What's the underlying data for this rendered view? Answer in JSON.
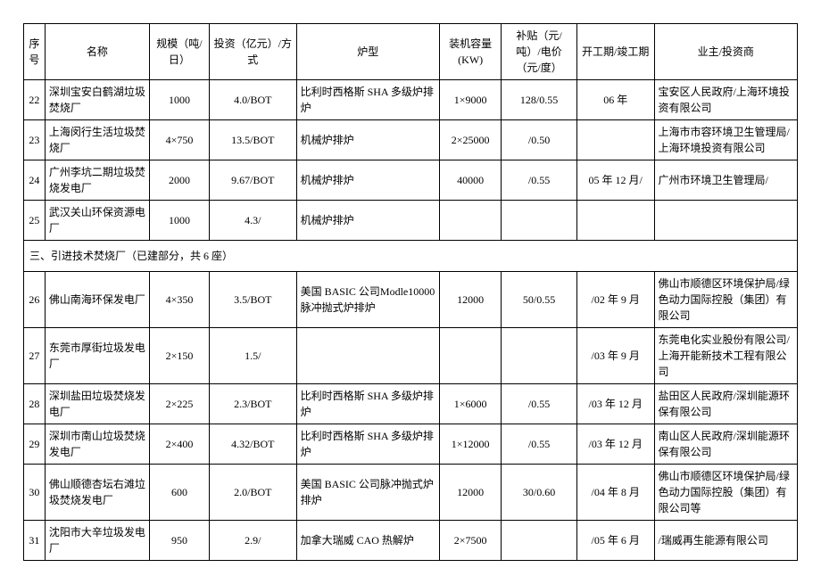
{
  "headers": {
    "idx": "序号",
    "name": "名称",
    "scale": "规模（吨/日）",
    "investment": "投资（亿元）/方式",
    "furnace": "炉型",
    "capacity": "装机容量(KW)",
    "subsidy": "补贴（元/吨）/电价（元/度）",
    "period": "开工期/竣工期",
    "owner": "业主/投资商"
  },
  "section1_rows": [
    {
      "idx": "22",
      "name": "深圳宝安白鹤湖垃圾焚烧厂",
      "scale": "1000",
      "inv": "4.0/BOT",
      "type": "比利时西格斯 SHA 多级炉排炉",
      "cap": "1×9000",
      "sub": "128/0.55",
      "period": "06 年",
      "owner": "宝安区人民政府/上海环境投资有限公司"
    },
    {
      "idx": "23",
      "name": "上海闵行生活垃圾焚烧厂",
      "scale": "4×750",
      "inv": "13.5/BOT",
      "type": "机械炉排炉",
      "cap": "2×25000",
      "sub": "/0.50",
      "period": "",
      "owner": "上海市市容环境卫生管理局/上海环境投资有限公司"
    },
    {
      "idx": "24",
      "name": "广州李坑二期垃圾焚烧发电厂",
      "scale": "2000",
      "inv": "9.67/BOT",
      "type": "机械炉排炉",
      "cap": "40000",
      "sub": "/0.55",
      "period": "05 年 12 月/",
      "owner": "广州市环境卫生管理局/"
    },
    {
      "idx": "25",
      "name": "武汉关山环保资源电厂",
      "scale": "1000",
      "inv": "4.3/",
      "type": "机械炉排炉",
      "cap": "",
      "sub": "",
      "period": "",
      "owner": ""
    }
  ],
  "section2_title": "三、引进技术焚烧厂（已建部分，共 6 座）",
  "section2_rows": [
    {
      "idx": "26",
      "name": "佛山南海环保发电厂",
      "scale": "4×350",
      "inv": "3.5/BOT",
      "type": "美国 BASIC 公司Modle10000脉冲抛式炉排炉",
      "cap": "12000",
      "sub": "50/0.55",
      "period": "/02 年 9 月",
      "owner": "佛山市顺德区环境保护局/绿色动力国际控股（集团）有限公司"
    },
    {
      "idx": "27",
      "name": "东莞市厚街垃圾发电厂",
      "scale": "2×150",
      "inv": "1.5/",
      "type": "",
      "cap": "",
      "sub": "",
      "period": "/03 年 9 月",
      "owner": "东莞电化实业股份有限公司/上海开能新技术工程有限公司"
    },
    {
      "idx": "28",
      "name": "深圳盐田垃圾焚烧发电厂",
      "scale": "2×225",
      "inv": "2.3/BOT",
      "type": "比利时西格斯 SHA 多级炉排炉",
      "cap": "1×6000",
      "sub": "/0.55",
      "period": "/03 年 12 月",
      "owner": "盐田区人民政府/深圳能源环保有限公司"
    },
    {
      "idx": "29",
      "name": "深圳市南山垃圾焚烧发电厂",
      "scale": "2×400",
      "inv": "4.32/BOT",
      "type": "比利时西格斯 SHA 多级炉排炉",
      "cap": "1×12000",
      "sub": "/0.55",
      "period": "/03 年 12 月",
      "owner": "南山区人民政府/深圳能源环保有限公司"
    },
    {
      "idx": "30",
      "name": "佛山顺德杏坛右滩垃圾焚烧发电厂",
      "scale": "600",
      "inv": "2.0/BOT",
      "type": "美国 BASIC 公司脉冲抛式炉排炉",
      "cap": "12000",
      "sub": "30/0.60",
      "period": "/04 年 8 月",
      "owner": "佛山市顺德区环境保护局/绿色动力国际控股（集团）有限公司等"
    },
    {
      "idx": "31",
      "name": "沈阳市大辛垃圾发电厂",
      "scale": "950",
      "inv": "2.9/",
      "type": "加拿大瑞威 CAO 热解炉",
      "cap": "2×7500",
      "sub": "",
      "period": "/05 年 6 月",
      "owner": "/瑞威再生能源有限公司"
    }
  ]
}
